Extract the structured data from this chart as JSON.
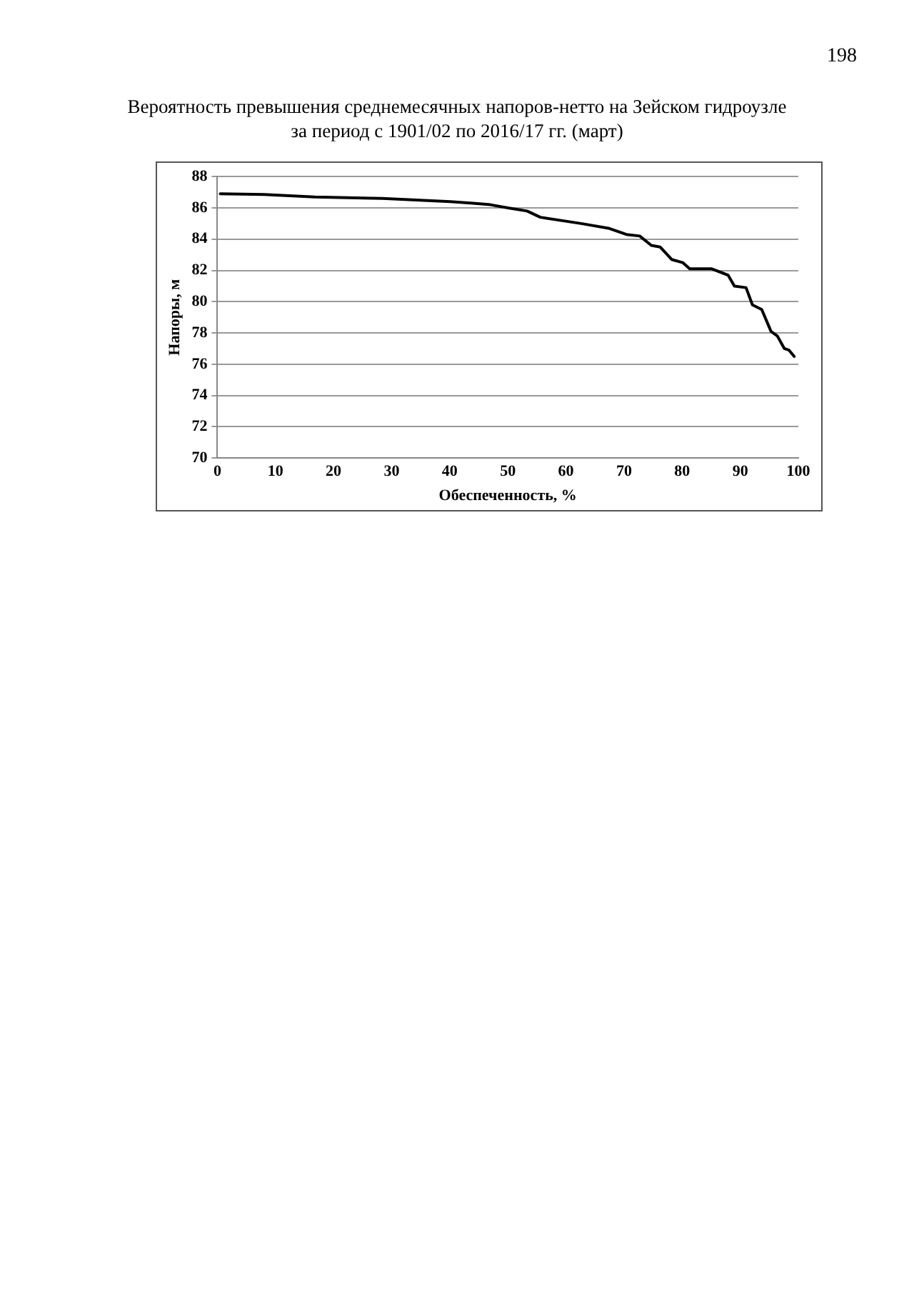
{
  "chart_data": {
    "type": "line",
    "title": "Вероятность превышения среднемесячных напоров-нетто на Зейском гидроузле\nза период с 1901/02 по 2016/17 гг. (март)",
    "xlabel": "Обеспеченность, %",
    "ylabel": "Напоры, м",
    "annotations": [
      "198"
    ],
    "x": [
      0.5,
      8,
      16.8,
      28.4,
      40.1,
      44,
      47,
      50,
      53.3,
      55.6,
      62.6,
      67.3,
      70.4,
      72.7,
      74.7,
      76.2,
      78.2,
      80.1,
      81.3,
      85.1,
      87.9,
      89.0,
      91.0,
      92.1,
      93.7,
      95.3,
      96.4,
      97.6,
      98.4,
      99.3
    ],
    "series": [
      {
        "color": "#000000",
        "values": [
          86.9,
          86.85,
          86.7,
          86.6,
          86.4,
          86.3,
          86.2,
          86.0,
          85.8,
          85.4,
          85.0,
          84.7,
          84.3,
          84.2,
          83.6,
          83.5,
          82.7,
          82.5,
          82.1,
          82.1,
          81.7,
          81.0,
          80.9,
          79.8,
          79.5,
          78.1,
          77.8,
          77.0,
          76.9,
          76.5
        ]
      }
    ],
    "xlim": [
      0,
      100
    ],
    "xticks": [
      0,
      10,
      20,
      30,
      40,
      50,
      60,
      70,
      80,
      90,
      100
    ],
    "ylim": [
      70,
      88
    ],
    "yticks": [
      70,
      72,
      74,
      76,
      78,
      80,
      82,
      84,
      86,
      88
    ],
    "grid": "y",
    "legend": false,
    "marker": "none",
    "line_style": "solid"
  }
}
